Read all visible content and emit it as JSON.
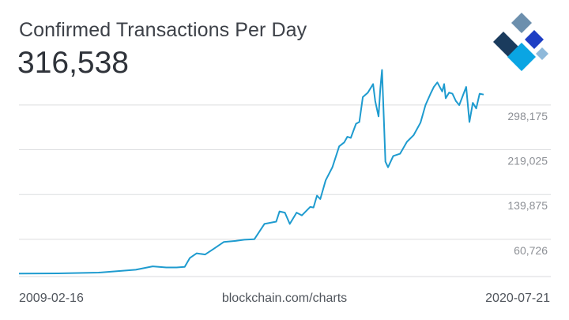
{
  "header": {
    "title": "Confirmed Transactions Per Day",
    "current_value": "316,538"
  },
  "footer": {
    "start_date": "2009-02-16",
    "source": "blockchain.com/charts",
    "end_date": "2020-07-21"
  },
  "logo": {
    "icon": "blockchain-logo-icon",
    "colors": [
      "#1a3b5d",
      "#1f3fc4",
      "#8fb9da",
      "#6c8fad",
      "#0aa5e3"
    ]
  },
  "chart_data": {
    "type": "line",
    "title": "Confirmed Transactions Per Day",
    "xlabel": "",
    "ylabel": "",
    "x_range": [
      "2009-02-16",
      "2020-07-21"
    ],
    "ylim": [
      -5000,
      344000
    ],
    "y_ticks": [
      60726,
      139875,
      219025,
      298175
    ],
    "y_tick_labels": [
      "60,726",
      "139,875",
      "219,025",
      "298,175"
    ],
    "grid": true,
    "line_color": "#1e9bcf",
    "series": [
      {
        "x": [
          "2009-02-16",
          "2010-02-01",
          "2011-02-01",
          "2012-01-01",
          "2012-06-01",
          "2012-10-01",
          "2013-01-01",
          "2013-03-15",
          "2013-05-01",
          "2013-07-01",
          "2013-09-15",
          "2013-12-01",
          "2014-03-01",
          "2014-06-15",
          "2014-09-01",
          "2014-12-01",
          "2015-03-01",
          "2015-06-15",
          "2015-07-15",
          "2015-09-01",
          "2015-10-15",
          "2015-12-15",
          "2016-02-01",
          "2016-04-15",
          "2016-05-15",
          "2016-06-15",
          "2016-07-15",
          "2016-09-01",
          "2016-11-01",
          "2017-01-01",
          "2017-02-15",
          "2017-03-15",
          "2017-04-15",
          "2017-06-01",
          "2017-07-01",
          "2017-08-01",
          "2017-09-15",
          "2017-11-01",
          "2017-11-20",
          "2017-12-20",
          "2018-01-05",
          "2018-01-20",
          "2018-02-05",
          "2018-02-20",
          "2018-03-15",
          "2018-05-01",
          "2018-07-01",
          "2018-09-01",
          "2018-11-01",
          "2019-01-01",
          "2019-02-15",
          "2019-04-01",
          "2019-05-01",
          "2019-06-01",
          "2019-07-15",
          "2019-08-01",
          "2019-08-15",
          "2019-09-15",
          "2019-10-15",
          "2019-11-15",
          "2019-12-15",
          "2020-01-15",
          "2020-02-15",
          "2020-03-15",
          "2020-04-15",
          "2020-05-15",
          "2020-06-15",
          "2020-07-21"
        ],
        "y": [
          200,
          600,
          2000,
          7000,
          13000,
          11000,
          11000,
          12000,
          28000,
          36000,
          34000,
          44000,
          56000,
          58000,
          60000,
          61000,
          88000,
          92000,
          110000,
          108000,
          88000,
          108000,
          103000,
          118000,
          117000,
          138000,
          132000,
          165000,
          188000,
          225000,
          232000,
          242000,
          240000,
          265000,
          268000,
          312000,
          320000,
          335000,
          305000,
          278000,
          326000,
          360000,
          278000,
          198000,
          188000,
          208000,
          212000,
          233000,
          245000,
          267000,
          298000,
          318000,
          330000,
          338000,
          322000,
          335000,
          310000,
          320000,
          318000,
          305000,
          298000,
          314000,
          330000,
          268000,
          302000,
          292000,
          318000,
          316538
        ]
      }
    ]
  }
}
